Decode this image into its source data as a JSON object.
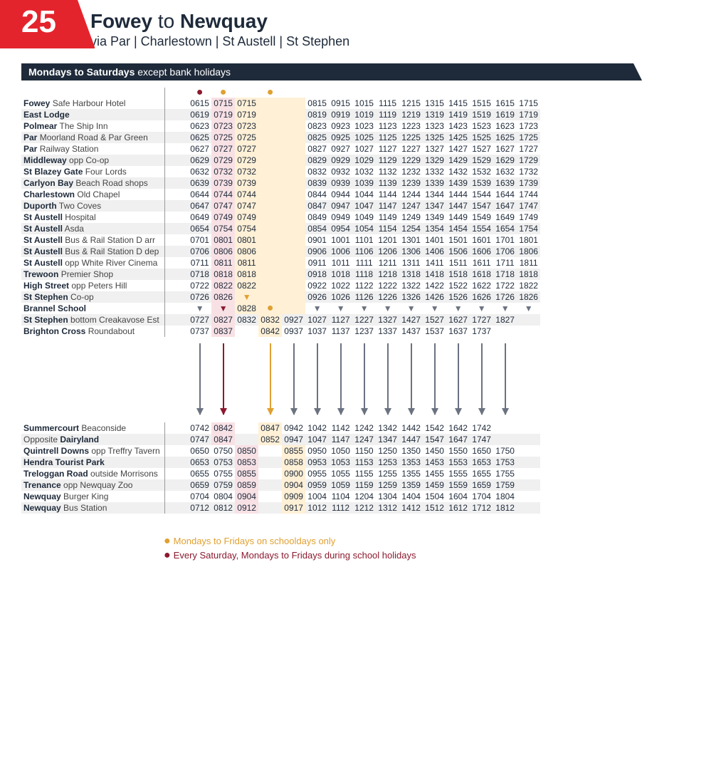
{
  "route_number": "25",
  "origin": "Fowey",
  "destination": "Newquay",
  "via": "via  Par  |  Charlestown  |  St Austell  |  St Stephen",
  "days_banner_bold": "Mondays to Saturdays",
  "days_banner_rest": "except bank holidays",
  "legend": [
    {
      "color": "yel",
      "text": "Mondays to Fridays on schooldays only"
    },
    {
      "color": "red",
      "text": "Every Saturday, Mondays to Fridays during school holidays"
    }
  ],
  "columns_meta": {
    "count": 15,
    "note_dots": [
      "",
      "red",
      "yel",
      "",
      "yel",
      "",
      "",
      "",
      "",
      "",
      "",
      "",
      "",
      "",
      ""
    ],
    "highlight": [
      "",
      "red",
      "yel",
      "yel",
      "yel",
      "",
      "",
      "",
      "",
      "",
      "",
      "",
      "",
      "",
      ""
    ]
  },
  "colors": {
    "brand_red": "#e4242d",
    "navy": "#1e2a3a",
    "hl_red": "#f8e1e5",
    "hl_yel": "#fff0d6",
    "dot_red": "#8b1a2e",
    "dot_yel": "#e0a030",
    "arrow_gray": "#6b7280"
  },
  "section1": [
    {
      "bold": "Fowey",
      "light": "Safe Harbour Hotel",
      "times": [
        "0615",
        "0715",
        "0715",
        "",
        "",
        "0815",
        "0915",
        "1015",
        "1115",
        "1215",
        "1315",
        "1415",
        "1515",
        "1615",
        "1715"
      ]
    },
    {
      "bold": "East Lodge",
      "light": "",
      "times": [
        "0619",
        "0719",
        "0719",
        "",
        "",
        "0819",
        "0919",
        "1019",
        "1119",
        "1219",
        "1319",
        "1419",
        "1519",
        "1619",
        "1719"
      ]
    },
    {
      "bold": "Polmear",
      "light": "The Ship Inn",
      "times": [
        "0623",
        "0723",
        "0723",
        "",
        "",
        "0823",
        "0923",
        "1023",
        "1123",
        "1223",
        "1323",
        "1423",
        "1523",
        "1623",
        "1723"
      ]
    },
    {
      "bold": "Par",
      "light": "Moorland Road & Par Green",
      "times": [
        "0625",
        "0725",
        "0725",
        "",
        "",
        "0825",
        "0925",
        "1025",
        "1125",
        "1225",
        "1325",
        "1425",
        "1525",
        "1625",
        "1725"
      ]
    },
    {
      "bold": "Par",
      "light": "Railway Station",
      "times": [
        "0627",
        "0727",
        "0727",
        "",
        "",
        "0827",
        "0927",
        "1027",
        "1127",
        "1227",
        "1327",
        "1427",
        "1527",
        "1627",
        "1727"
      ]
    },
    {
      "bold": "Middleway",
      "light": "opp Co-op",
      "times": [
        "0629",
        "0729",
        "0729",
        "",
        "",
        "0829",
        "0929",
        "1029",
        "1129",
        "1229",
        "1329",
        "1429",
        "1529",
        "1629",
        "1729"
      ]
    },
    {
      "bold": "St Blazey Gate",
      "light": "Four Lords",
      "times": [
        "0632",
        "0732",
        "0732",
        "",
        "",
        "0832",
        "0932",
        "1032",
        "1132",
        "1232",
        "1332",
        "1432",
        "1532",
        "1632",
        "1732"
      ]
    },
    {
      "bold": "Carlyon Bay",
      "light": "Beach Road shops",
      "times": [
        "0639",
        "0739",
        "0739",
        "",
        "",
        "0839",
        "0939",
        "1039",
        "1139",
        "1239",
        "1339",
        "1439",
        "1539",
        "1639",
        "1739"
      ]
    },
    {
      "bold": "Charlestown",
      "light": "Old Chapel",
      "times": [
        "0644",
        "0744",
        "0744",
        "",
        "",
        "0844",
        "0944",
        "1044",
        "1144",
        "1244",
        "1344",
        "1444",
        "1544",
        "1644",
        "1744"
      ]
    },
    {
      "bold": "Duporth",
      "light": "Two Coves",
      "times": [
        "0647",
        "0747",
        "0747",
        "",
        "",
        "0847",
        "0947",
        "1047",
        "1147",
        "1247",
        "1347",
        "1447",
        "1547",
        "1647",
        "1747"
      ]
    },
    {
      "bold": "St Austell",
      "light": "Hospital",
      "times": [
        "0649",
        "0749",
        "0749",
        "",
        "",
        "0849",
        "0949",
        "1049",
        "1149",
        "1249",
        "1349",
        "1449",
        "1549",
        "1649",
        "1749"
      ]
    },
    {
      "bold": "St Austell",
      "light": "Asda",
      "times": [
        "0654",
        "0754",
        "0754",
        "",
        "",
        "0854",
        "0954",
        "1054",
        "1154",
        "1254",
        "1354",
        "1454",
        "1554",
        "1654",
        "1754"
      ]
    },
    {
      "bold": "St Austell",
      "light": "Bus & Rail Station D arr",
      "times": [
        "0701",
        "0801",
        "0801",
        "",
        "",
        "0901",
        "1001",
        "1101",
        "1201",
        "1301",
        "1401",
        "1501",
        "1601",
        "1701",
        "1801"
      ]
    },
    {
      "bold": "St Austell",
      "light": "Bus & Rail Station D dep",
      "times": [
        "0706",
        "0806",
        "0806",
        "",
        "",
        "0906",
        "1006",
        "1106",
        "1206",
        "1306",
        "1406",
        "1506",
        "1606",
        "1706",
        "1806"
      ]
    },
    {
      "bold": "St Austell",
      "light": "opp White River Cinema",
      "times": [
        "0711",
        "0811",
        "0811",
        "",
        "",
        "0911",
        "1011",
        "1111",
        "1211",
        "1311",
        "1411",
        "1511",
        "1611",
        "1711",
        "1811"
      ]
    },
    {
      "bold": "Trewoon",
      "light": "Premier Shop",
      "times": [
        "0718",
        "0818",
        "0818",
        "",
        "",
        "0918",
        "1018",
        "1118",
        "1218",
        "1318",
        "1418",
        "1518",
        "1618",
        "1718",
        "1818"
      ]
    },
    {
      "bold": "High Street",
      "light": "opp Peters Hill",
      "times": [
        "0722",
        "0822",
        "0822",
        "",
        "",
        "0922",
        "1022",
        "1122",
        "1222",
        "1322",
        "1422",
        "1522",
        "1622",
        "1722",
        "1822"
      ]
    },
    {
      "bold": "St Stephen",
      "light": "Co-op",
      "times": [
        "0726",
        "0826",
        "▼",
        "",
        "",
        "0926",
        "1026",
        "1126",
        "1226",
        "1326",
        "1426",
        "1526",
        "1626",
        "1726",
        "1826"
      ]
    },
    {
      "bold": "Brannel School",
      "light": "",
      "times": [
        "▼",
        "▼",
        "0828",
        "●",
        "",
        "▼",
        "▼",
        "▼",
        "▼",
        "▼",
        "▼",
        "▼",
        "▼",
        "▼",
        "▼"
      ]
    },
    {
      "bold": "St Stephen",
      "light": "bottom Creakavose Est",
      "times": [
        "0727",
        "0827",
        "0832",
        "0832",
        "0927",
        "1027",
        "1127",
        "1227",
        "1327",
        "1427",
        "1527",
        "1627",
        "1727",
        "1827",
        ""
      ],
      "shift": true
    },
    {
      "bold": "Brighton Cross",
      "light": "Roundabout",
      "times": [
        "0737",
        "0837",
        "",
        "0842",
        "0937",
        "1037",
        "1137",
        "1237",
        "1337",
        "1437",
        "1537",
        "1637",
        "1737",
        "",
        ""
      ],
      "shift": true
    }
  ],
  "connector_cols": [
    0,
    1,
    3,
    4,
    5,
    6,
    7,
    8,
    9,
    10,
    11,
    12,
    13
  ],
  "connector_colors": {
    "1": "red",
    "3": "yel"
  },
  "section2": [
    {
      "bold": "Summercourt",
      "light": "Beaconside",
      "times": [
        "0742",
        "0842",
        "",
        "0847",
        "0942",
        "1042",
        "1142",
        "1242",
        "1342",
        "1442",
        "1542",
        "1642",
        "1742",
        "",
        ""
      ],
      "shift": true
    },
    {
      "bold": "Opposite",
      "light": "Dairyland",
      "boldLight": true,
      "times": [
        "0747",
        "0847",
        "",
        "0852",
        "0947",
        "1047",
        "1147",
        "1247",
        "1347",
        "1447",
        "1547",
        "1647",
        "1747",
        "",
        ""
      ],
      "shift": true
    },
    {
      "bold": "Quintrell Downs",
      "light": "opp Treffry Tavern",
      "times": [
        "0650",
        "0750",
        "0850",
        "",
        "0855",
        "0950",
        "1050",
        "1150",
        "1250",
        "1350",
        "1450",
        "1550",
        "1650",
        "1750",
        ""
      ],
      "shiftS2": true
    },
    {
      "bold": "Hendra Tourist Park",
      "light": "",
      "times": [
        "0653",
        "0753",
        "0853",
        "",
        "0858",
        "0953",
        "1053",
        "1153",
        "1253",
        "1353",
        "1453",
        "1553",
        "1653",
        "1753",
        ""
      ],
      "shiftS2": true
    },
    {
      "bold": "Treloggan Road",
      "light": "outside Morrisons",
      "times": [
        "0655",
        "0755",
        "0855",
        "",
        "0900",
        "0955",
        "1055",
        "1155",
        "1255",
        "1355",
        "1455",
        "1555",
        "1655",
        "1755",
        ""
      ],
      "shiftS2": true
    },
    {
      "bold": "Trenance",
      "light": "opp Newquay Zoo",
      "times": [
        "0659",
        "0759",
        "0859",
        "",
        "0904",
        "0959",
        "1059",
        "1159",
        "1259",
        "1359",
        "1459",
        "1559",
        "1659",
        "1759",
        ""
      ],
      "shiftS2": true
    },
    {
      "bold": "Newquay",
      "light": "Burger King",
      "times": [
        "0704",
        "0804",
        "0904",
        "",
        "0909",
        "1004",
        "1104",
        "1204",
        "1304",
        "1404",
        "1504",
        "1604",
        "1704",
        "1804",
        ""
      ],
      "shiftS2": true
    },
    {
      "bold": "Newquay",
      "light": "Bus Station",
      "times": [
        "0712",
        "0812",
        "0912",
        "",
        "0917",
        "1012",
        "1112",
        "1212",
        "1312",
        "1412",
        "1512",
        "1612",
        "1712",
        "1812",
        ""
      ],
      "shiftS2": true
    }
  ]
}
